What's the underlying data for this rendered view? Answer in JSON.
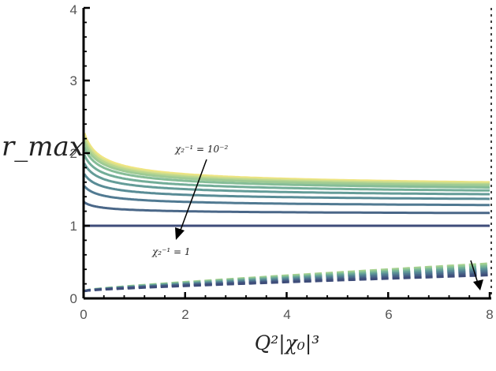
{
  "chart_data": {
    "type": "line",
    "title": "",
    "xlabel": "Q²|χ₀|³",
    "ylabel": "r_max",
    "xlim": [
      0,
      8
    ],
    "ylim": [
      0,
      4
    ],
    "x_ticks": [
      "0",
      "2",
      "4",
      "6",
      "8"
    ],
    "y_ticks": [
      "0",
      "1",
      "2",
      "3",
      "4"
    ],
    "grid": false,
    "legend": "none",
    "annotations": [
      {
        "label": "χ₂⁻¹ = 10⁻²",
        "points_to": "upper solid curves"
      },
      {
        "label": "χ₂⁻¹ = 1",
        "points_to": "lower solid curves"
      }
    ],
    "solid_series": [
      {
        "y_inf": 1.48,
        "amp": 0.83,
        "color": "#f0e580"
      },
      {
        "y_inf": 1.47,
        "amp": 0.8,
        "color": "#d6df8c"
      },
      {
        "y_inf": 1.46,
        "amp": 0.77,
        "color": "#b8d690"
      },
      {
        "y_inf": 1.45,
        "amp": 0.73,
        "color": "#9fcb95"
      },
      {
        "y_inf": 1.43,
        "amp": 0.68,
        "color": "#86bd97"
      },
      {
        "y_inf": 1.4,
        "amp": 0.6,
        "color": "#72ad98"
      },
      {
        "y_inf": 1.36,
        "amp": 0.52,
        "color": "#649c98"
      },
      {
        "y_inf": 1.31,
        "amp": 0.42,
        "color": "#598c96"
      },
      {
        "y_inf": 1.24,
        "amp": 0.32,
        "color": "#517a92"
      },
      {
        "y_inf": 1.15,
        "amp": 0.18,
        "color": "#4a6788"
      },
      {
        "y_inf": 1.0,
        "amp": 0.0,
        "color": "#3f4d7a"
      }
    ],
    "dashed_series": [
      {
        "y0": 0.1,
        "y8": 0.48,
        "color": "#a8d290"
      },
      {
        "y0": 0.1,
        "y8": 0.46,
        "color": "#8fc695"
      },
      {
        "y0": 0.1,
        "y8": 0.44,
        "color": "#78b597"
      },
      {
        "y0": 0.1,
        "y8": 0.42,
        "color": "#68a398"
      },
      {
        "y0": 0.1,
        "y8": 0.4,
        "color": "#5b9096"
      },
      {
        "y0": 0.1,
        "y8": 0.38,
        "color": "#527e93"
      },
      {
        "y0": 0.1,
        "y8": 0.36,
        "color": "#4c6d8c"
      },
      {
        "y0": 0.1,
        "y8": 0.34,
        "color": "#455d84"
      },
      {
        "y0": 0.1,
        "y8": 0.32,
        "color": "#3f4d7a"
      }
    ]
  }
}
